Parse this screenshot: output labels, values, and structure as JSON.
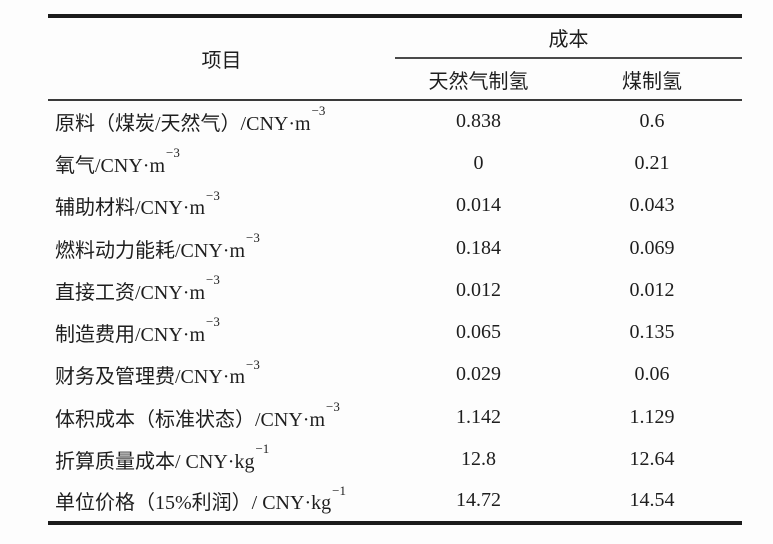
{
  "page": {
    "background": "#fdfdfd"
  },
  "table": {
    "header": {
      "item_col": "项目",
      "cost_group": "成本",
      "col_gas": "天然气制氢",
      "col_coal": "煤制氢"
    },
    "rows": [
      {
        "label": "原料（煤炭/天然气）/CNY·m",
        "sup": "−3",
        "gas": "0.838",
        "coal": "0.6"
      },
      {
        "label": "氧气/CNY·m",
        "sup": "−3",
        "gas": "0",
        "coal": "0.21"
      },
      {
        "label": "辅助材料/CNY·m",
        "sup": "−3",
        "gas": "0.014",
        "coal": "0.043"
      },
      {
        "label": "燃料动力能耗/CNY·m",
        "sup": "−3",
        "gas": "0.184",
        "coal": "0.069"
      },
      {
        "label": "直接工资/CNY·m",
        "sup": "−3",
        "gas": "0.012",
        "coal": "0.012"
      },
      {
        "label": "制造费用/CNY·m",
        "sup": "−3",
        "gas": "0.065",
        "coal": "0.135"
      },
      {
        "label": "财务及管理费/CNY·m",
        "sup": "−3",
        "gas": "0.029",
        "coal": "0.06"
      },
      {
        "label": "体积成本（标准状态）/CNY·m",
        "sup": "−3",
        "gas": "1.142",
        "coal": "1.129"
      },
      {
        "label": "折算质量成本/ CNY·kg",
        "sup": "−1",
        "gas": "12.8",
        "coal": "12.64"
      },
      {
        "label": "单位价格（15%利润）/ CNY·kg",
        "sup": "−1",
        "gas": "14.72",
        "coal": "14.54"
      }
    ],
    "colors": {
      "text": "#1e1e1e",
      "rule_heavy": "#1c1c1c",
      "rule_light": "#4a4a4a",
      "background": "#fdfdfd"
    }
  }
}
